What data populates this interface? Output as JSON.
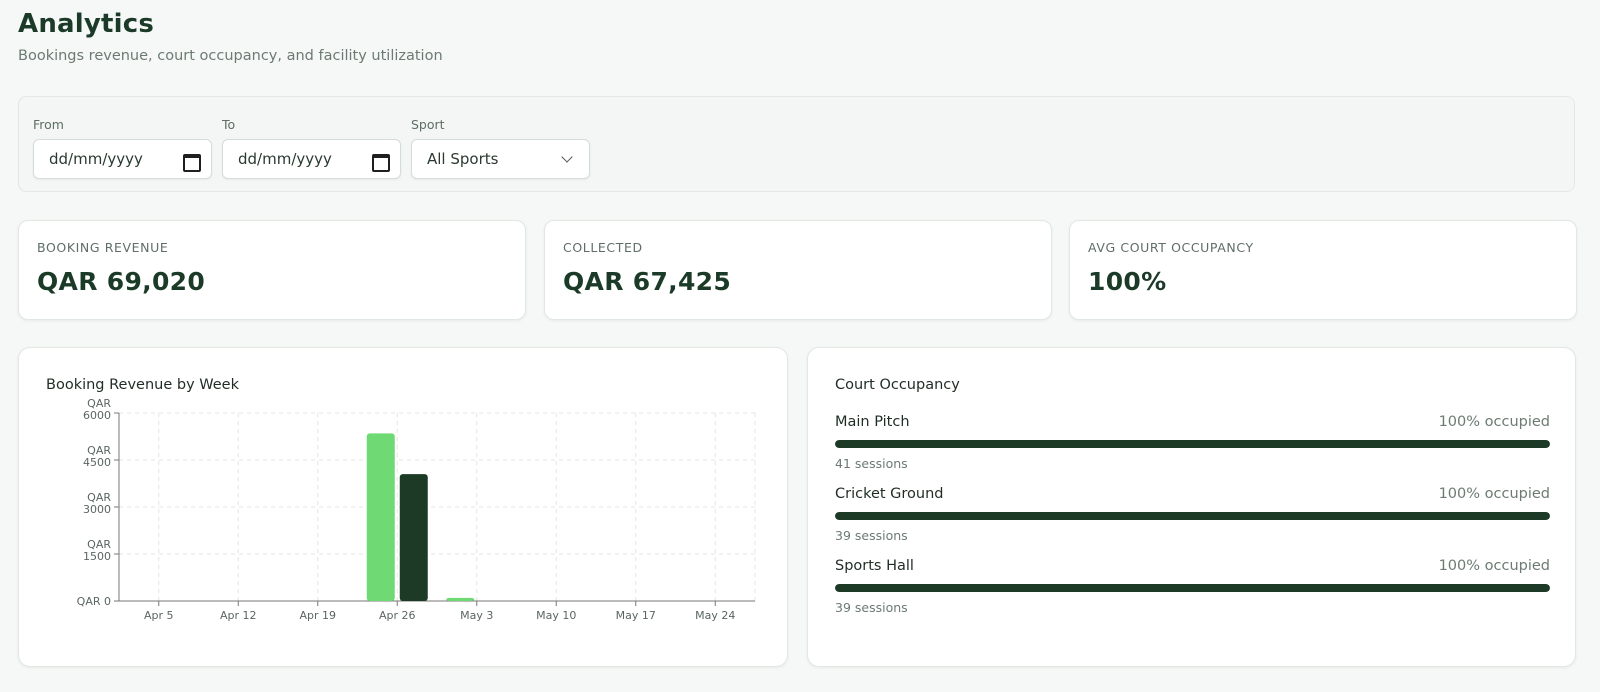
{
  "header": {
    "title": "Analytics",
    "subtitle": "Bookings revenue, court occupancy, and facility utilization"
  },
  "filters": {
    "from_label": "From",
    "from_value": "dd/mm/yyyy",
    "to_label": "To",
    "to_value": "dd/mm/yyyy",
    "sport_label": "Sport",
    "sport_value": "All Sports"
  },
  "stats": [
    {
      "label": "BOOKING REVENUE",
      "value": "QAR 69,020"
    },
    {
      "label": "COLLECTED",
      "value": "QAR 67,425"
    },
    {
      "label": "AVG COURT OCCUPANCY",
      "value": "100%"
    }
  ],
  "revenue_panel": {
    "title": "Booking Revenue by Week"
  },
  "chart_data": {
    "type": "bar",
    "title": "Booking Revenue by Week",
    "categories": [
      "Apr 5",
      "Apr 12",
      "Apr 19",
      "Apr 26",
      "May 3",
      "May 10",
      "May 17",
      "May 24"
    ],
    "series": [
      {
        "values": [
          0,
          0,
          0,
          5350,
          100,
          0,
          0,
          0
        ],
        "color": "#6fd974"
      },
      {
        "values": [
          0,
          0,
          0,
          4050,
          0,
          0,
          0,
          0
        ],
        "color": "#1c3a26"
      }
    ],
    "y_ticks": [
      {
        "value": 0,
        "label": "QAR 0"
      },
      {
        "value": 1500,
        "label": "QAR 1500"
      },
      {
        "value": 3000,
        "label": "QAR 3000"
      },
      {
        "value": 4500,
        "label": "QAR 4500"
      },
      {
        "value": 6000,
        "label": "QAR 6000"
      }
    ],
    "ylim": [
      0,
      6000
    ],
    "grid": true,
    "xlabel": "",
    "ylabel": ""
  },
  "occupancy": {
    "title": "Court Occupancy",
    "courts": [
      {
        "name": "Main Pitch",
        "pct_label": "100% occupied",
        "pct": 100,
        "sessions": "41 sessions"
      },
      {
        "name": "Cricket Ground",
        "pct_label": "100% occupied",
        "pct": 100,
        "sessions": "39 sessions"
      },
      {
        "name": "Sports Hall",
        "pct_label": "100% occupied",
        "pct": 100,
        "sessions": "39 sessions"
      }
    ]
  }
}
